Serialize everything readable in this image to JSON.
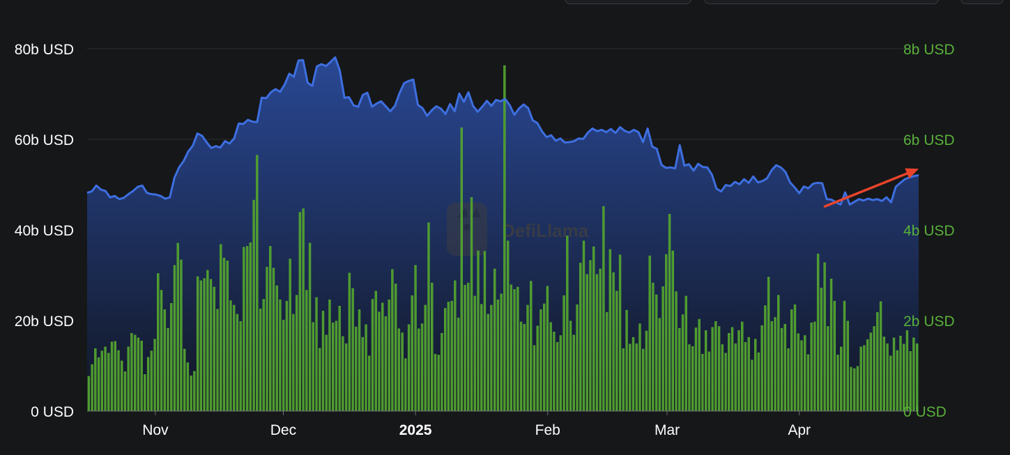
{
  "colors": {
    "background": "#161719",
    "tvl_line": "#3e6fe0",
    "tvl_fill_top": "#2a4a9a",
    "tvl_fill_bottom": "#111624",
    "volume_bar": "#4e9a2e",
    "volume_bar_stroke": "#5fb83a",
    "right_axis_text": "#58b03a",
    "left_axis_text": "#ffffff",
    "grid": "#2a2c31",
    "arrow": "#e8442c",
    "watermark": "#3b3d44"
  },
  "watermark": "DefiLlama",
  "chart_data": {
    "type": "area+bar",
    "x_ticks": [
      "Nov",
      "Dec",
      "2025",
      "Feb",
      "Mar",
      "Apr"
    ],
    "x_tick_days": [
      16,
      46,
      77,
      108,
      136,
      167
    ],
    "x_tick_bold": [
      false,
      false,
      true,
      false,
      false,
      false
    ],
    "y_left": {
      "ticks": [
        "0 USD",
        "20b USD",
        "40b USD",
        "60b USD",
        "80b USD"
      ],
      "range": [
        0,
        80
      ],
      "unit": "b USD"
    },
    "y_right": {
      "ticks": [
        "0 USD",
        "2b USD",
        "4b USD",
        "6b USD",
        "8b USD"
      ],
      "range": [
        0,
        8
      ],
      "unit": "b USD"
    },
    "grid": true,
    "series": [
      {
        "kind": "area",
        "axis": "left",
        "values": [
          48.2,
          48.5,
          49.8,
          48.9,
          48.6,
          47.2,
          47.5,
          46.8,
          47.1,
          47.9,
          48.6,
          49.5,
          49.8,
          48.2,
          47.9,
          47.8,
          47.5,
          46.9,
          47.2,
          51.5,
          53.8,
          55.2,
          57.3,
          58.6,
          61.3,
          60.8,
          59.4,
          58.1,
          58.5,
          58.2,
          59.6,
          59.1,
          60.2,
          63.5,
          63.4,
          64.3,
          63.9,
          63.8,
          69.2,
          69.1,
          70.4,
          71.1,
          70.5,
          72.1,
          74.5,
          73.8,
          77.4,
          77.5,
          72.5,
          71.8,
          76.1,
          76.6,
          76.2,
          77.1,
          78.1,
          75.2,
          69.2,
          69.3,
          67.5,
          67.2,
          69.8,
          70.3,
          67.2,
          67.9,
          68.4,
          67.3,
          66.2,
          67.4,
          70.2,
          72.4,
          72.9,
          73.2,
          67.6,
          66.9,
          65.2,
          66.4,
          67.3,
          66.8,
          65.6,
          67.8,
          66.2,
          70.1,
          68.3,
          70.4,
          67.4,
          66.1,
          67.2,
          68.5,
          67.4,
          68.7,
          68.4,
          68.9,
          67.5,
          65.4,
          66.8,
          67.7,
          66.9,
          64.2,
          63.6,
          61.8,
          60.5,
          60.9,
          59.7,
          60.2,
          59.3,
          59.4,
          59.6,
          60.2,
          60.1,
          61.5,
          62.4,
          61.8,
          62.1,
          61.6,
          62.3,
          61.4,
          62.7,
          61.9,
          61.5,
          62.1,
          61.6,
          59.4,
          62.4,
          58.4,
          57.9,
          54.4,
          53.7,
          53.8,
          53.6,
          58.7,
          54.2,
          54.5,
          53.1,
          54.6,
          53.9,
          53.8,
          52.2,
          49.1,
          48.5,
          49.9,
          49.7,
          50.6,
          50.1,
          51.2,
          50.4,
          51.8,
          50.5,
          50.8,
          51.4,
          53.2,
          54.3,
          53.8,
          52.8,
          50.5,
          49.4,
          48.1,
          49.6,
          49.2,
          50.2,
          50.4,
          50.3,
          46.8,
          46.7,
          46.1,
          45.6,
          48.3,
          45.6,
          46.2,
          46.8,
          46.5,
          46.9,
          46.6,
          46.8,
          46.4,
          47.2,
          46.1,
          49.5,
          50.4,
          51.2,
          51.6,
          51.9,
          52.1
        ]
      },
      {
        "kind": "bar",
        "axis": "right",
        "values": [
          0.77,
          1.03,
          1.38,
          1.18,
          1.33,
          1.42,
          1.28,
          1.53,
          1.54,
          1.34,
          1.11,
          0.87,
          1.42,
          1.72,
          1.68,
          1.62,
          1.55,
          0.81,
          1.19,
          1.33,
          1.59,
          3.04,
          2.67,
          2.24,
          1.83,
          2.38,
          3.22,
          3.71,
          3.34,
          1.37,
          1.07,
          0.78,
          0.88,
          2.97,
          2.88,
          2.93,
          3.11,
          2.91,
          2.74,
          2.25,
          3.68,
          3.38,
          3.32,
          2.44,
          2.34,
          2.14,
          1.98,
          3.62,
          3.64,
          3.72,
          4.66,
          5.65,
          2.26,
          2.47,
          3.18,
          3.64,
          3.16,
          2.77,
          2.46,
          2.01,
          2.43,
          3.36,
          2.14,
          2.56,
          4.39,
          4.47,
          2.67,
          3.71,
          1.96,
          2.51,
          1.39,
          2.21,
          1.68,
          2.46,
          1.95,
          1.99,
          2.32,
          1.65,
          1.49,
          3.05,
          2.71,
          1.86,
          2.24,
          1.63,
          1.91,
          1.22,
          2.47,
          2.65,
          2.19,
          2.39,
          2.09,
          2.46,
          3.13,
          2.81,
          1.82,
          1.73,
          1.16,
          1.91,
          2.55,
          3.22,
          1.82,
          1.93,
          2.34,
          4.16,
          2.83,
          1.26,
          1.24,
          1.72,
          2.27,
          2.41,
          2.43,
          2.88,
          2.06,
          6.26,
          2.78,
          2.83,
          4.72,
          2.54,
          3.54,
          2.36,
          3.53,
          2.14,
          2.34,
          3.14,
          2.46,
          2.59,
          7.63,
          3.76,
          2.79,
          2.69,
          2.74,
          1.97,
          1.92,
          2.34,
          2.87,
          1.45,
          1.88,
          2.24,
          2.37,
          2.76,
          1.96,
          1.75,
          1.52,
          1.67,
          2.55,
          3.87,
          1.99,
          1.68,
          2.35,
          3.27,
          3.76,
          3.02,
          3.33,
          3.63,
          3.02,
          3.14,
          4.52,
          2.18,
          3.57,
          3.06,
          2.65,
          3.45,
          1.38,
          2.23,
          1.48,
          1.63,
          1.49,
          1.93,
          1.37,
          1.77,
          3.43,
          2.83,
          2.57,
          2.05,
          2.75,
          3.46,
          4.35,
          3.54,
          2.64,
          1.83,
          2.13,
          2.54,
          1.47,
          1.43,
          1.84,
          2.03,
          1.26,
          1.78,
          1.31,
          1.85,
          1.98,
          1.87,
          1.47,
          1.28,
          1.72,
          1.85,
          1.49,
          1.78,
          1.97,
          1.52,
          1.63,
          1.13,
          1.59,
          1.29,
          1.89,
          2.33,
          2.96,
          1.98,
          2.07,
          2.56,
          1.83,
          1.92,
          1.38,
          2.24,
          2.35,
          1.71,
          1.56,
          1.67,
          1.25,
          1.95,
          1.97,
          3.47,
          2.72,
          3.28,
          1.87,
          2.92,
          2.43,
          1.24,
          1.42,
          2.43,
          1.99,
          0.97,
          0.94,
          0.99,
          1.42,
          1.45,
          1.58,
          1.73,
          1.87,
          2.18,
          2.42,
          1.64,
          1.49,
          1.22,
          1.62,
          1.34,
          1.66,
          1.48,
          1.78,
          1.32,
          1.62,
          1.49
        ]
      }
    ],
    "annotations": [
      {
        "type": "arrow",
        "from": {
          "day": 173,
          "value": 45.2
        },
        "to": {
          "day": 195,
          "value": 53.5
        }
      }
    ]
  }
}
